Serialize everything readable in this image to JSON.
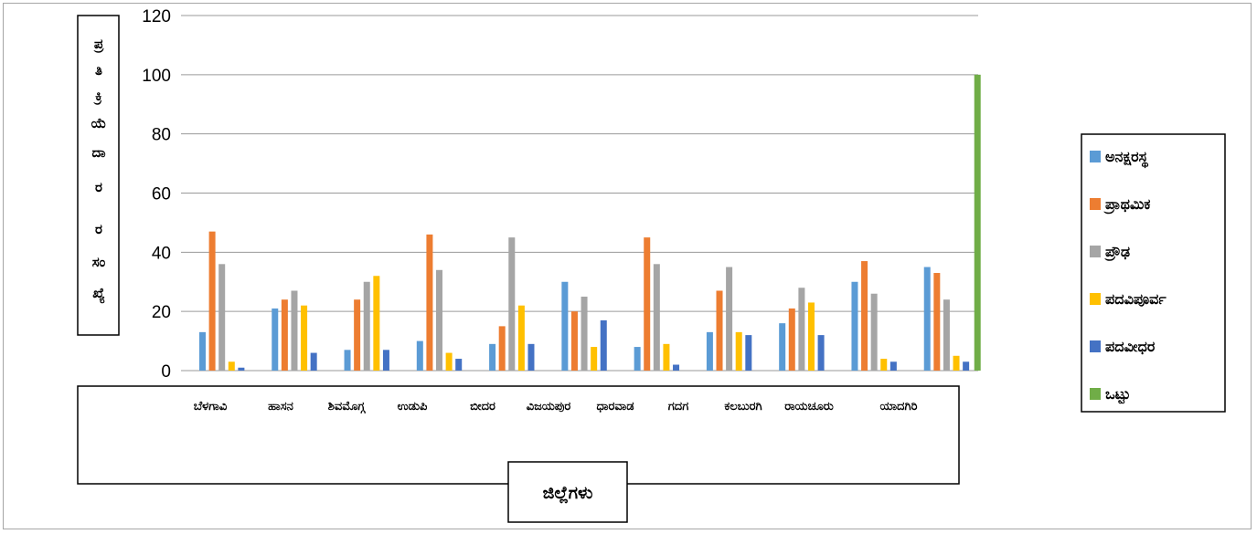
{
  "chart_data": {
    "type": "bar",
    "ylabel": "ಪ್ರತಿಕ್ರಿಯೆದಾರರ ಸಂಖ್ಯೆ",
    "ylabel_chars": [
      "ಪ್ರ",
      "ತಿ",
      "ಕ್ರಿ",
      "ಯೆ",
      "ದಾ",
      "ರ",
      "ರ",
      "ಸಂ",
      "ಖ್ಯೆ"
    ],
    "xlabel": "ಜಿಲ್ಲೆಗಳು",
    "ylim": [
      0,
      120
    ],
    "yticks": [
      "0",
      "20",
      "40",
      "60",
      "80",
      "100",
      "120"
    ],
    "grid": true,
    "legend_position": "right",
    "categories": [
      "ಬೆಳಗಾವಿ",
      "ಹಾಸನ",
      "ಶಿವಮೊಗ್ಗ",
      "ಉಡುಪಿ",
      "ಬೀದರ",
      "ವಿಜಯಪುರ",
      "ಧಾರವಾಡ",
      "ಗದಗ",
      "ಕಲಬುರಗಿ",
      "ರಾಯಚೂರು",
      "ಯಾದಗಿರಿ"
    ],
    "series": [
      {
        "name": "ಅನಕ್ಷರಸ್ಥ",
        "color": "#5b9bd5",
        "values": [
          13,
          21,
          7,
          10,
          9,
          30,
          8,
          13,
          16,
          30,
          35
        ]
      },
      {
        "name": "ಪ್ರಾಥಮಿಕ",
        "color": "#ed7d31",
        "values": [
          47,
          24,
          24,
          46,
          15,
          20,
          45,
          27,
          21,
          37,
          33
        ]
      },
      {
        "name": "ಪ್ರೌಢ",
        "color": "#a5a5a5",
        "values": [
          36,
          27,
          30,
          34,
          45,
          25,
          36,
          35,
          28,
          26,
          24
        ]
      },
      {
        "name": "ಪದವಿಪೂರ್ವ",
        "color": "#ffc000",
        "values": [
          3,
          22,
          32,
          6,
          22,
          8,
          9,
          13,
          23,
          4,
          5
        ]
      },
      {
        "name": "ಪದವೀಧರ",
        "color": "#4472c4",
        "values": [
          1,
          6,
          7,
          4,
          9,
          17,
          2,
          12,
          12,
          3,
          3
        ]
      },
      {
        "name": "ಒಟ್ಟು",
        "color": "#70ad47",
        "values": [
          null,
          null,
          null,
          null,
          null,
          null,
          null,
          null,
          null,
          null,
          100
        ]
      }
    ]
  }
}
